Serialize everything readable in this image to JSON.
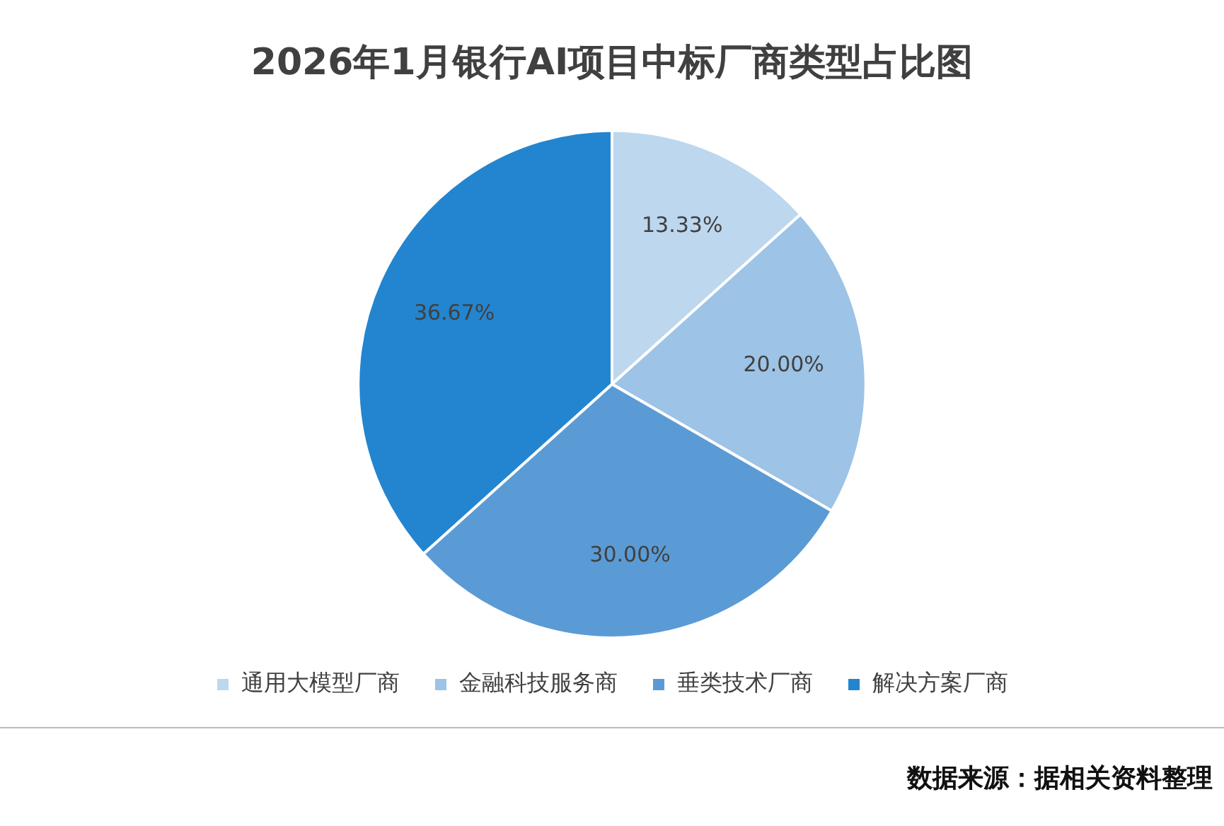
{
  "chart_data": {
    "type": "pie",
    "title": "2026年1月银行AI项目中标厂商类型占比图",
    "categories": [
      "通用大模型厂商",
      "金融科技服务商",
      "垂类技术厂商",
      "解决方案厂商"
    ],
    "values": [
      13.33,
      20.0,
      30.0,
      36.67
    ],
    "value_labels": [
      "13.33%",
      "20.00%",
      "30.00%",
      "36.67%"
    ],
    "colors": [
      "#bdd7ee",
      "#9dc3e6",
      "#5b9bd5",
      "#2385cf"
    ],
    "legend": "bottom",
    "annotations": [
      "数据来源：据相关资料整理"
    ]
  }
}
